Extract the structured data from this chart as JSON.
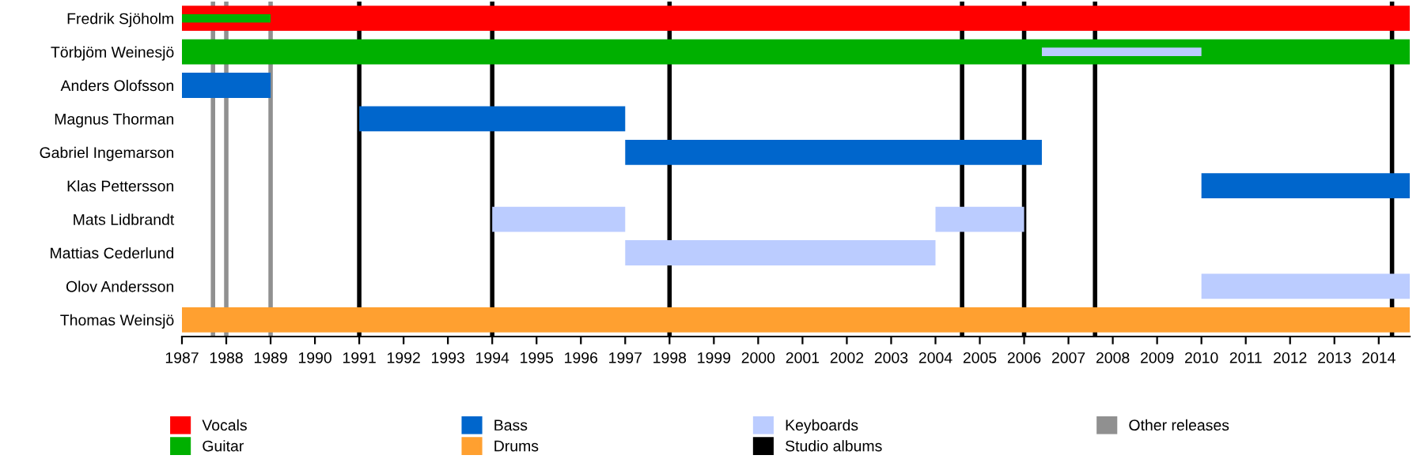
{
  "chart_data": {
    "type": "bar",
    "orientation": "horizontal",
    "categories": [
      "Fredrik Sjöholm",
      "Törbjöm Weinesjö",
      "Anders Olofsson",
      "Magnus Thorman",
      "Gabriel Ingemarson",
      "Klas Pettersson",
      "Mats Lidbrandt",
      "Mattias Cederlund",
      "Olov Andersson",
      "Thomas Weinsjö"
    ],
    "series": [
      {
        "name": "Vocals",
        "color": "#ff0000",
        "base": [
          1987,
          null,
          null,
          null,
          null,
          null,
          null,
          null,
          null,
          null
        ],
        "values": [
          27.7,
          null,
          null,
          null,
          null,
          null,
          null,
          null,
          null,
          null
        ]
      },
      {
        "name": "Guitar",
        "color": "#00b000",
        "base": [
          1987,
          1987,
          null,
          null,
          null,
          null,
          null,
          null,
          null,
          null
        ],
        "values": [
          2,
          27.7,
          null,
          null,
          null,
          null,
          null,
          null,
          null,
          null
        ]
      },
      {
        "name": "Bass",
        "color": "#0066cc",
        "base": [
          null,
          null,
          1987,
          1991,
          1997,
          2010,
          null,
          null,
          null,
          null
        ],
        "values": [
          null,
          null,
          2,
          6,
          9.4,
          4.7,
          null,
          null,
          null,
          null
        ]
      },
      {
        "name": "Drums",
        "color": "#ffa030",
        "base": [
          null,
          null,
          null,
          null,
          null,
          null,
          null,
          null,
          null,
          1987
        ],
        "values": [
          null,
          null,
          null,
          null,
          null,
          null,
          null,
          null,
          null,
          27.7
        ]
      },
      {
        "name": "Keyboards",
        "color": "#bbccff",
        "base": [
          null,
          2006.4,
          null,
          null,
          null,
          null,
          1994,
          1997,
          2010,
          null
        ],
        "values": [
          null,
          3.6,
          null,
          null,
          null,
          null,
          3,
          7,
          4.7,
          null
        ]
      },
      {
        "color": "#bbccff",
        "base": [
          null,
          null,
          null,
          null,
          null,
          null,
          2004,
          null,
          null,
          null
        ],
        "values": [
          null,
          null,
          null,
          null,
          null,
          null,
          2,
          null,
          null,
          null
        ]
      }
    ],
    "ref_lines": [
      {
        "axis": "x",
        "value": 1991,
        "label": "Studio albums",
        "color": "#000000"
      },
      {
        "axis": "x",
        "value": 1994,
        "color": "#000000"
      },
      {
        "axis": "x",
        "value": 1998,
        "color": "#000000"
      },
      {
        "axis": "x",
        "value": 2004.6,
        "color": "#000000"
      },
      {
        "axis": "x",
        "value": 2006,
        "color": "#000000"
      },
      {
        "axis": "x",
        "value": 2007.6,
        "color": "#000000"
      },
      {
        "axis": "x",
        "value": 2014.3,
        "color": "#000000"
      },
      {
        "axis": "x",
        "value": 1987.7,
        "label": "Other releases",
        "color": "#909090"
      },
      {
        "axis": "x",
        "value": 1988,
        "color": "#909090"
      },
      {
        "axis": "x",
        "value": 1989,
        "color": "#909090"
      }
    ],
    "xlim": [
      1987,
      2014.7
    ],
    "xticks": [
      1987,
      1988,
      1989,
      1990,
      1991,
      1992,
      1993,
      1994,
      1995,
      1996,
      1997,
      1998,
      1999,
      2000,
      2001,
      2002,
      2003,
      2004,
      2005,
      2006,
      2007,
      2008,
      2009,
      2010,
      2011,
      2012,
      2013,
      2014
    ],
    "grid": false,
    "legend": "bottom"
  }
}
